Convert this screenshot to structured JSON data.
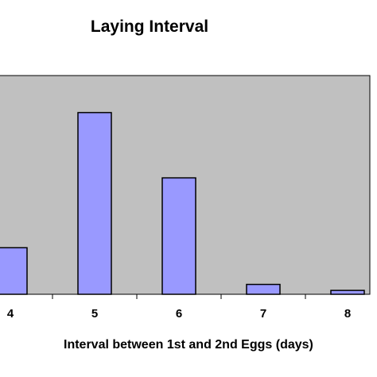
{
  "chart_data": {
    "type": "bar",
    "title": "Laying Interval",
    "xlabel": "Interval between 1st and 2nd Eggs (days)",
    "ylabel": "",
    "categories": [
      "4",
      "5",
      "6",
      "7",
      "8"
    ],
    "values": [
      13.2,
      51.5,
      33.0,
      2.8,
      1.1
    ],
    "ylim": [
      0,
      62
    ],
    "grid": false,
    "legend": "none",
    "colors": {
      "plot_background": "#c0c0c0",
      "bar_fill": "#9999ff",
      "bar_stroke": "#000000"
    }
  }
}
